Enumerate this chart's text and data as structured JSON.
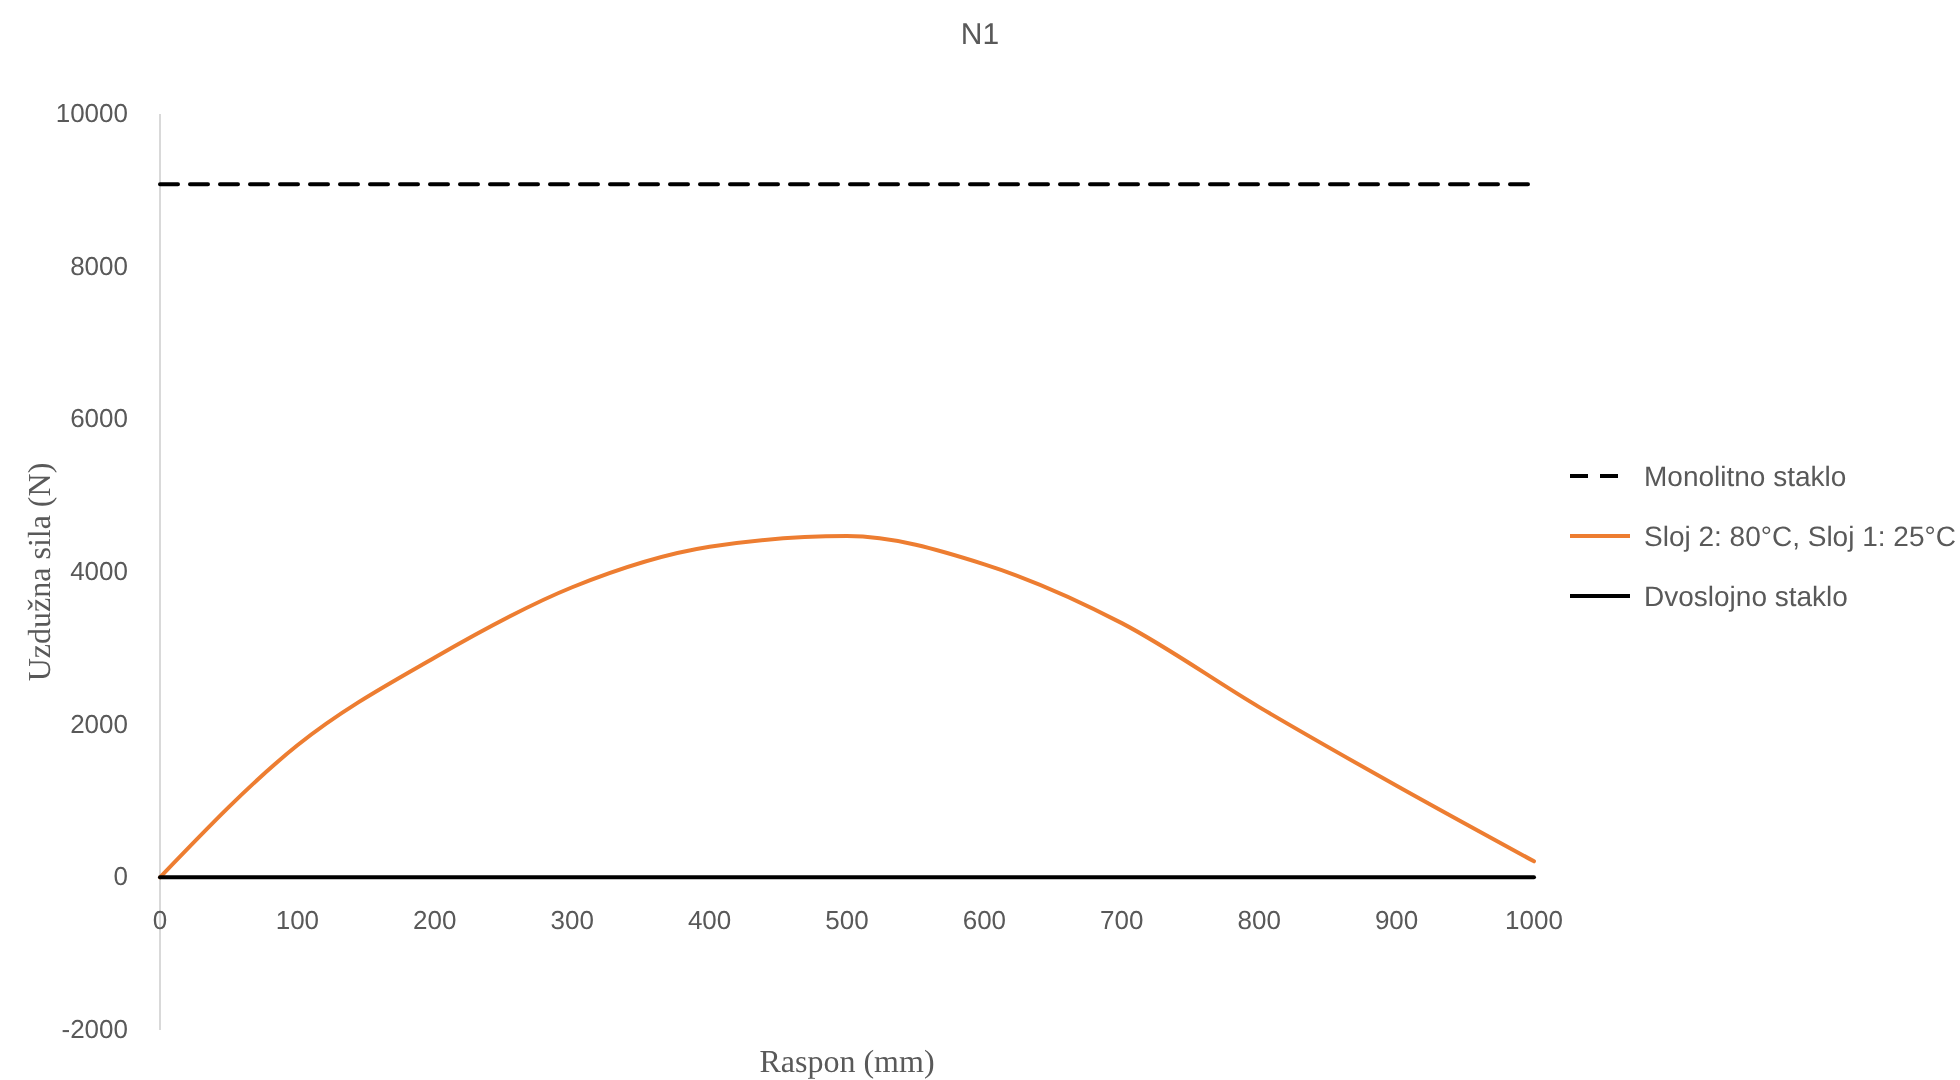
{
  "chart_data": {
    "type": "line",
    "title": "N1",
    "xlabel": "Raspon (mm)",
    "ylabel": "Uzdužna sila (N)",
    "x": [
      0,
      100,
      200,
      300,
      400,
      500,
      600,
      700,
      800,
      900,
      1000
    ],
    "xlim": [
      0,
      1000
    ],
    "xticks": [
      0,
      100,
      200,
      300,
      400,
      500,
      600,
      700,
      800,
      900,
      1000
    ],
    "ylim": [
      -2000,
      10000
    ],
    "yticks": [
      -2000,
      0,
      2000,
      4000,
      6000,
      8000,
      10000
    ],
    "grid": false,
    "legend": "right",
    "marker": "none",
    "series": [
      {
        "name": "Monolitno staklo",
        "color": "#000000",
        "line_style": "dashed",
        "values": [
          9080,
          9080,
          9080,
          9080,
          9080,
          9080,
          9080,
          9080,
          9080,
          9080,
          9080
        ]
      },
      {
        "name": "Sloj 2: 80°C, Sloj 1: 25°C",
        "color": "#ed7d31",
        "line_style": "solid",
        "values": [
          0,
          1730,
          2880,
          3800,
          4330,
          4470,
          4100,
          3330,
          2230,
          1200,
          210
        ]
      },
      {
        "name": "Dvoslojno staklo",
        "color": "#000000",
        "line_style": "solid",
        "values": [
          0,
          0,
          0,
          0,
          0,
          0,
          0,
          0,
          0,
          0,
          0
        ]
      }
    ]
  }
}
